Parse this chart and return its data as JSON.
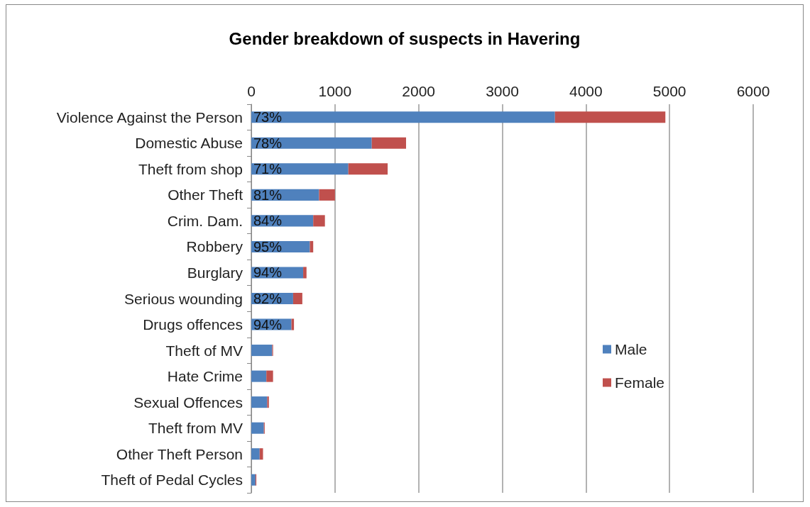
{
  "chart_data": {
    "type": "bar",
    "title": "Gender breakdown of suspects in Havering",
    "orientation": "horizontal",
    "stacked": true,
    "categories": [
      "Violence Against the Person",
      "Domestic Abuse",
      "Theft from shop",
      "Other Theft",
      "Crim. Dam.",
      "Robbery",
      "Burglary",
      "Serious wounding",
      "Drugs offences",
      "Theft of MV",
      "Hate Crime",
      "Sexual Offences",
      "Theft from MV",
      "Other Theft Person",
      "Theft of Pedal Cycles"
    ],
    "series": [
      {
        "name": "Male",
        "color": "#4f81bd",
        "values": [
          3630,
          1440,
          1160,
          810,
          740,
          700,
          620,
          500,
          480,
          250,
          180,
          190,
          150,
          100,
          50
        ]
      },
      {
        "name": "Female",
        "color": "#c0504d",
        "values": [
          1320,
          410,
          470,
          190,
          140,
          40,
          40,
          110,
          30,
          10,
          80,
          20,
          10,
          40,
          10
        ]
      }
    ],
    "annotations": [
      "73%",
      "78%",
      "71%",
      "81%",
      "84%",
      "95%",
      "94%",
      "82%",
      "94%"
    ],
    "xlim": [
      0,
      6000
    ],
    "xticks": [
      0,
      1000,
      2000,
      3000,
      4000,
      5000,
      6000
    ],
    "grid": "x",
    "legend": "right"
  }
}
